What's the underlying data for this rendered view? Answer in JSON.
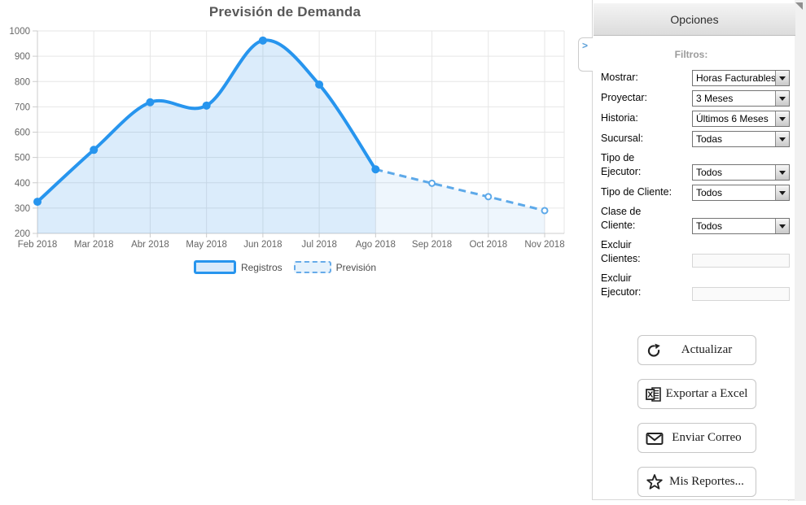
{
  "chart_data": {
    "type": "area",
    "title": "Previsión de Demanda",
    "xlabel": "",
    "ylabel": "",
    "categories": [
      "Feb 2018",
      "Mar 2018",
      "Abr 2018",
      "May 2018",
      "Jun 2018",
      "Jul 2018",
      "Ago 2018",
      "Sep 2018",
      "Oct 2018",
      "Nov 2018"
    ],
    "series": [
      {
        "name": "Registros",
        "style": "solid",
        "start_index": 0,
        "values": [
          325,
          530,
          718,
          705,
          962,
          788,
          453
        ]
      },
      {
        "name": "Previsión",
        "style": "dashed",
        "start_index": 6,
        "values": [
          453,
          398,
          345,
          290
        ]
      }
    ],
    "ylim": [
      200,
      1000
    ],
    "ytick_step": 100,
    "grid": true,
    "legend_position": "bottom"
  },
  "colors": {
    "line_solid": "#2795ee",
    "line_dashed": "#5da9e9",
    "fill_solid": "rgba(39,144,232,0.17)",
    "fill_dashed": "rgba(39,144,232,0.08)",
    "grid": "#e6e6e6",
    "axis": "#cccccc",
    "axis_text": "#666666"
  },
  "panel": {
    "title": "Opciones",
    "filters_heading": "Filtros:",
    "collapse_glyph": ">",
    "fields": [
      {
        "key": "mostrar",
        "label": "Mostrar:",
        "type": "select",
        "value": "Horas Facturables"
      },
      {
        "key": "proyectar",
        "label": "Proyectar:",
        "type": "select",
        "value": "3 Meses"
      },
      {
        "key": "historia",
        "label": "Historia:",
        "type": "select",
        "value": "Últimos 6 Meses"
      },
      {
        "key": "sucursal",
        "label": "Sucursal:",
        "type": "select",
        "value": "Todas"
      },
      {
        "key": "tipo-ejecutor",
        "label": "Tipo de\nEjecutor:",
        "type": "select",
        "value": "Todos"
      },
      {
        "key": "tipo-cliente",
        "label": "Tipo de Cliente:",
        "type": "select",
        "value": "Todos"
      },
      {
        "key": "clase-cliente",
        "label": "Clase de\nCliente:",
        "type": "select",
        "value": "Todos"
      },
      {
        "key": "excluir-clientes",
        "label": "Excluir\nClientes:",
        "type": "input",
        "value": ""
      },
      {
        "key": "excluir-ejecutor",
        "label": "Excluir\nEjecutor:",
        "type": "input",
        "value": ""
      }
    ],
    "buttons": [
      {
        "key": "actualizar",
        "label": "Actualizar",
        "icon": "refresh-icon"
      },
      {
        "key": "exportar",
        "label": "Exportar a Excel",
        "icon": "excel-icon"
      },
      {
        "key": "enviar",
        "label": "Enviar Correo",
        "icon": "mail-icon"
      },
      {
        "key": "reportes",
        "label": "Mis Reportes...",
        "icon": "star-icon"
      }
    ]
  }
}
